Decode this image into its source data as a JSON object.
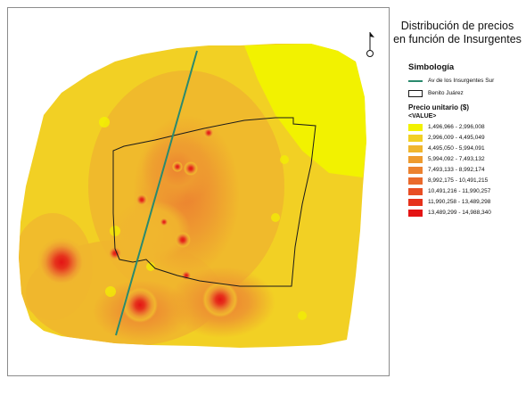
{
  "title_lines": [
    "Distribución de precios",
    "en función de Insurgentes"
  ],
  "north_label": "",
  "legend": {
    "heading": "Simbología",
    "road_label": "Av de los Insurgentes Sur",
    "boundary_label": "Benito Juárez",
    "price_heading": "Precio unitario ($)",
    "value_label": "<VALUE>",
    "classes": [
      {
        "label": "1,496,966 - 2,996,008",
        "color": "#f2f200"
      },
      {
        "label": "2,996,009 - 4,495,049",
        "color": "#f2d024"
      },
      {
        "label": "4,495,050 - 5,994,091",
        "color": "#f0b62e"
      },
      {
        "label": "5,994,092 - 7,493,132",
        "color": "#ee9b30"
      },
      {
        "label": "7,493,133 - 8,992,174",
        "color": "#ec8230"
      },
      {
        "label": "8,992,175 - 10,491,215",
        "color": "#ea6a2c"
      },
      {
        "label": "10,491,216 - 11,990,257",
        "color": "#e84e24"
      },
      {
        "label": "11,990,258 - 13,489,298",
        "color": "#e6321c"
      },
      {
        "label": "13,489,299 - 14,988,340",
        "color": "#e41414"
      }
    ]
  },
  "colors": {
    "road": "#2a8a6e",
    "boundary": "#1a1a1a",
    "frame": "#8c8c8c"
  }
}
